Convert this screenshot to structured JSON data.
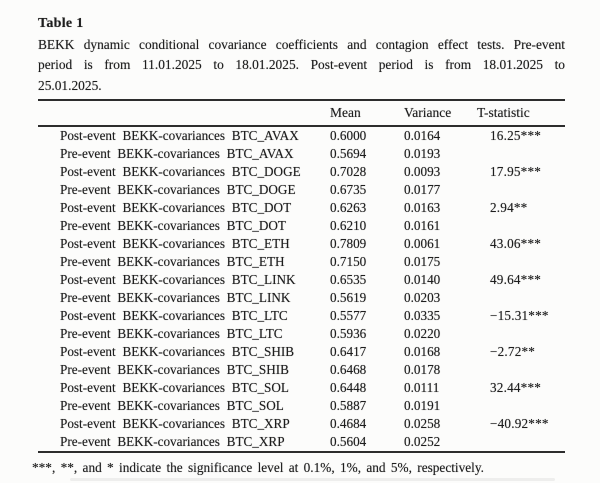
{
  "page": {
    "title": "Table 1",
    "caption_lines": [
      "BEKK dynamic conditional covariance coefficients and contagion effect tests. Pre-event",
      "period is from 11.01.2025 to 18.01.2025. Post-event period is from 18.01.2025 to",
      "25.01.2025."
    ],
    "footnote": "***, **, and * indicate the significance level at 0.1%, 1%, and 5%, respectively."
  },
  "table": {
    "columns": [
      "",
      "Mean",
      "Variance",
      "T-statistic"
    ],
    "rows": [
      {
        "label": "Post-event BEKK-covariances BTC_AVAX",
        "mean": "0.6000",
        "variance": "0.0164",
        "tstat": "16.25***"
      },
      {
        "label": "Pre-event BEKK-covariances BTC_AVAX",
        "mean": "0.5694",
        "variance": "0.0193",
        "tstat": ""
      },
      {
        "label": "Post-event BEKK-covariances BTC_DOGE",
        "mean": "0.7028",
        "variance": "0.0093",
        "tstat": "17.95***"
      },
      {
        "label": "Pre-event BEKK-covariances BTC_DOGE",
        "mean": "0.6735",
        "variance": "0.0177",
        "tstat": ""
      },
      {
        "label": "Post-event BEKK-covariances BTC_DOT",
        "mean": "0.6263",
        "variance": "0.0163",
        "tstat": "2.94**"
      },
      {
        "label": "Pre-event BEKK-covariances BTC_DOT",
        "mean": "0.6210",
        "variance": "0.0161",
        "tstat": ""
      },
      {
        "label": "Post-event BEKK-covariances BTC_ETH",
        "mean": "0.7809",
        "variance": "0.0061",
        "tstat": "43.06***"
      },
      {
        "label": "Pre-event BEKK-covariances BTC_ETH",
        "mean": "0.7150",
        "variance": "0.0175",
        "tstat": ""
      },
      {
        "label": "Post-event BEKK-covariances BTC_LINK",
        "mean": "0.6535",
        "variance": "0.0140",
        "tstat": "49.64***"
      },
      {
        "label": "Pre-event BEKK-covariances BTC_LINK",
        "mean": "0.5619",
        "variance": "0.0203",
        "tstat": ""
      },
      {
        "label": "Post-event BEKK-covariances BTC_LTC",
        "mean": "0.5577",
        "variance": "0.0335",
        "tstat": "−15.31***"
      },
      {
        "label": "Pre-event BEKK-covariances BTC_LTC",
        "mean": "0.5936",
        "variance": "0.0220",
        "tstat": ""
      },
      {
        "label": "Post-event BEKK-covariances BTC_SHIB",
        "mean": "0.6417",
        "variance": "0.0168",
        "tstat": "−2.72**"
      },
      {
        "label": "Pre-event BEKK-covariances BTC_SHIB",
        "mean": "0.6468",
        "variance": "0.0178",
        "tstat": ""
      },
      {
        "label": "Post-event BEKK-covariances BTC_SOL",
        "mean": "0.6448",
        "variance": "0.0111",
        "tstat": "32.44***"
      },
      {
        "label": "Pre-event BEKK-covariances BTC_SOL",
        "mean": "0.5887",
        "variance": "0.0191",
        "tstat": ""
      },
      {
        "label": "Post-event BEKK-covariances BTC_XRP",
        "mean": "0.4684",
        "variance": "0.0258",
        "tstat": "−40.92***"
      },
      {
        "label": "Pre-event BEKK-covariances BTC_XRP",
        "mean": "0.5604",
        "variance": "0.0252",
        "tstat": ""
      }
    ]
  },
  "colors": {
    "background": "#fcfcfb",
    "text": "#1e1e1e",
    "rule": "#2d2d2d"
  }
}
